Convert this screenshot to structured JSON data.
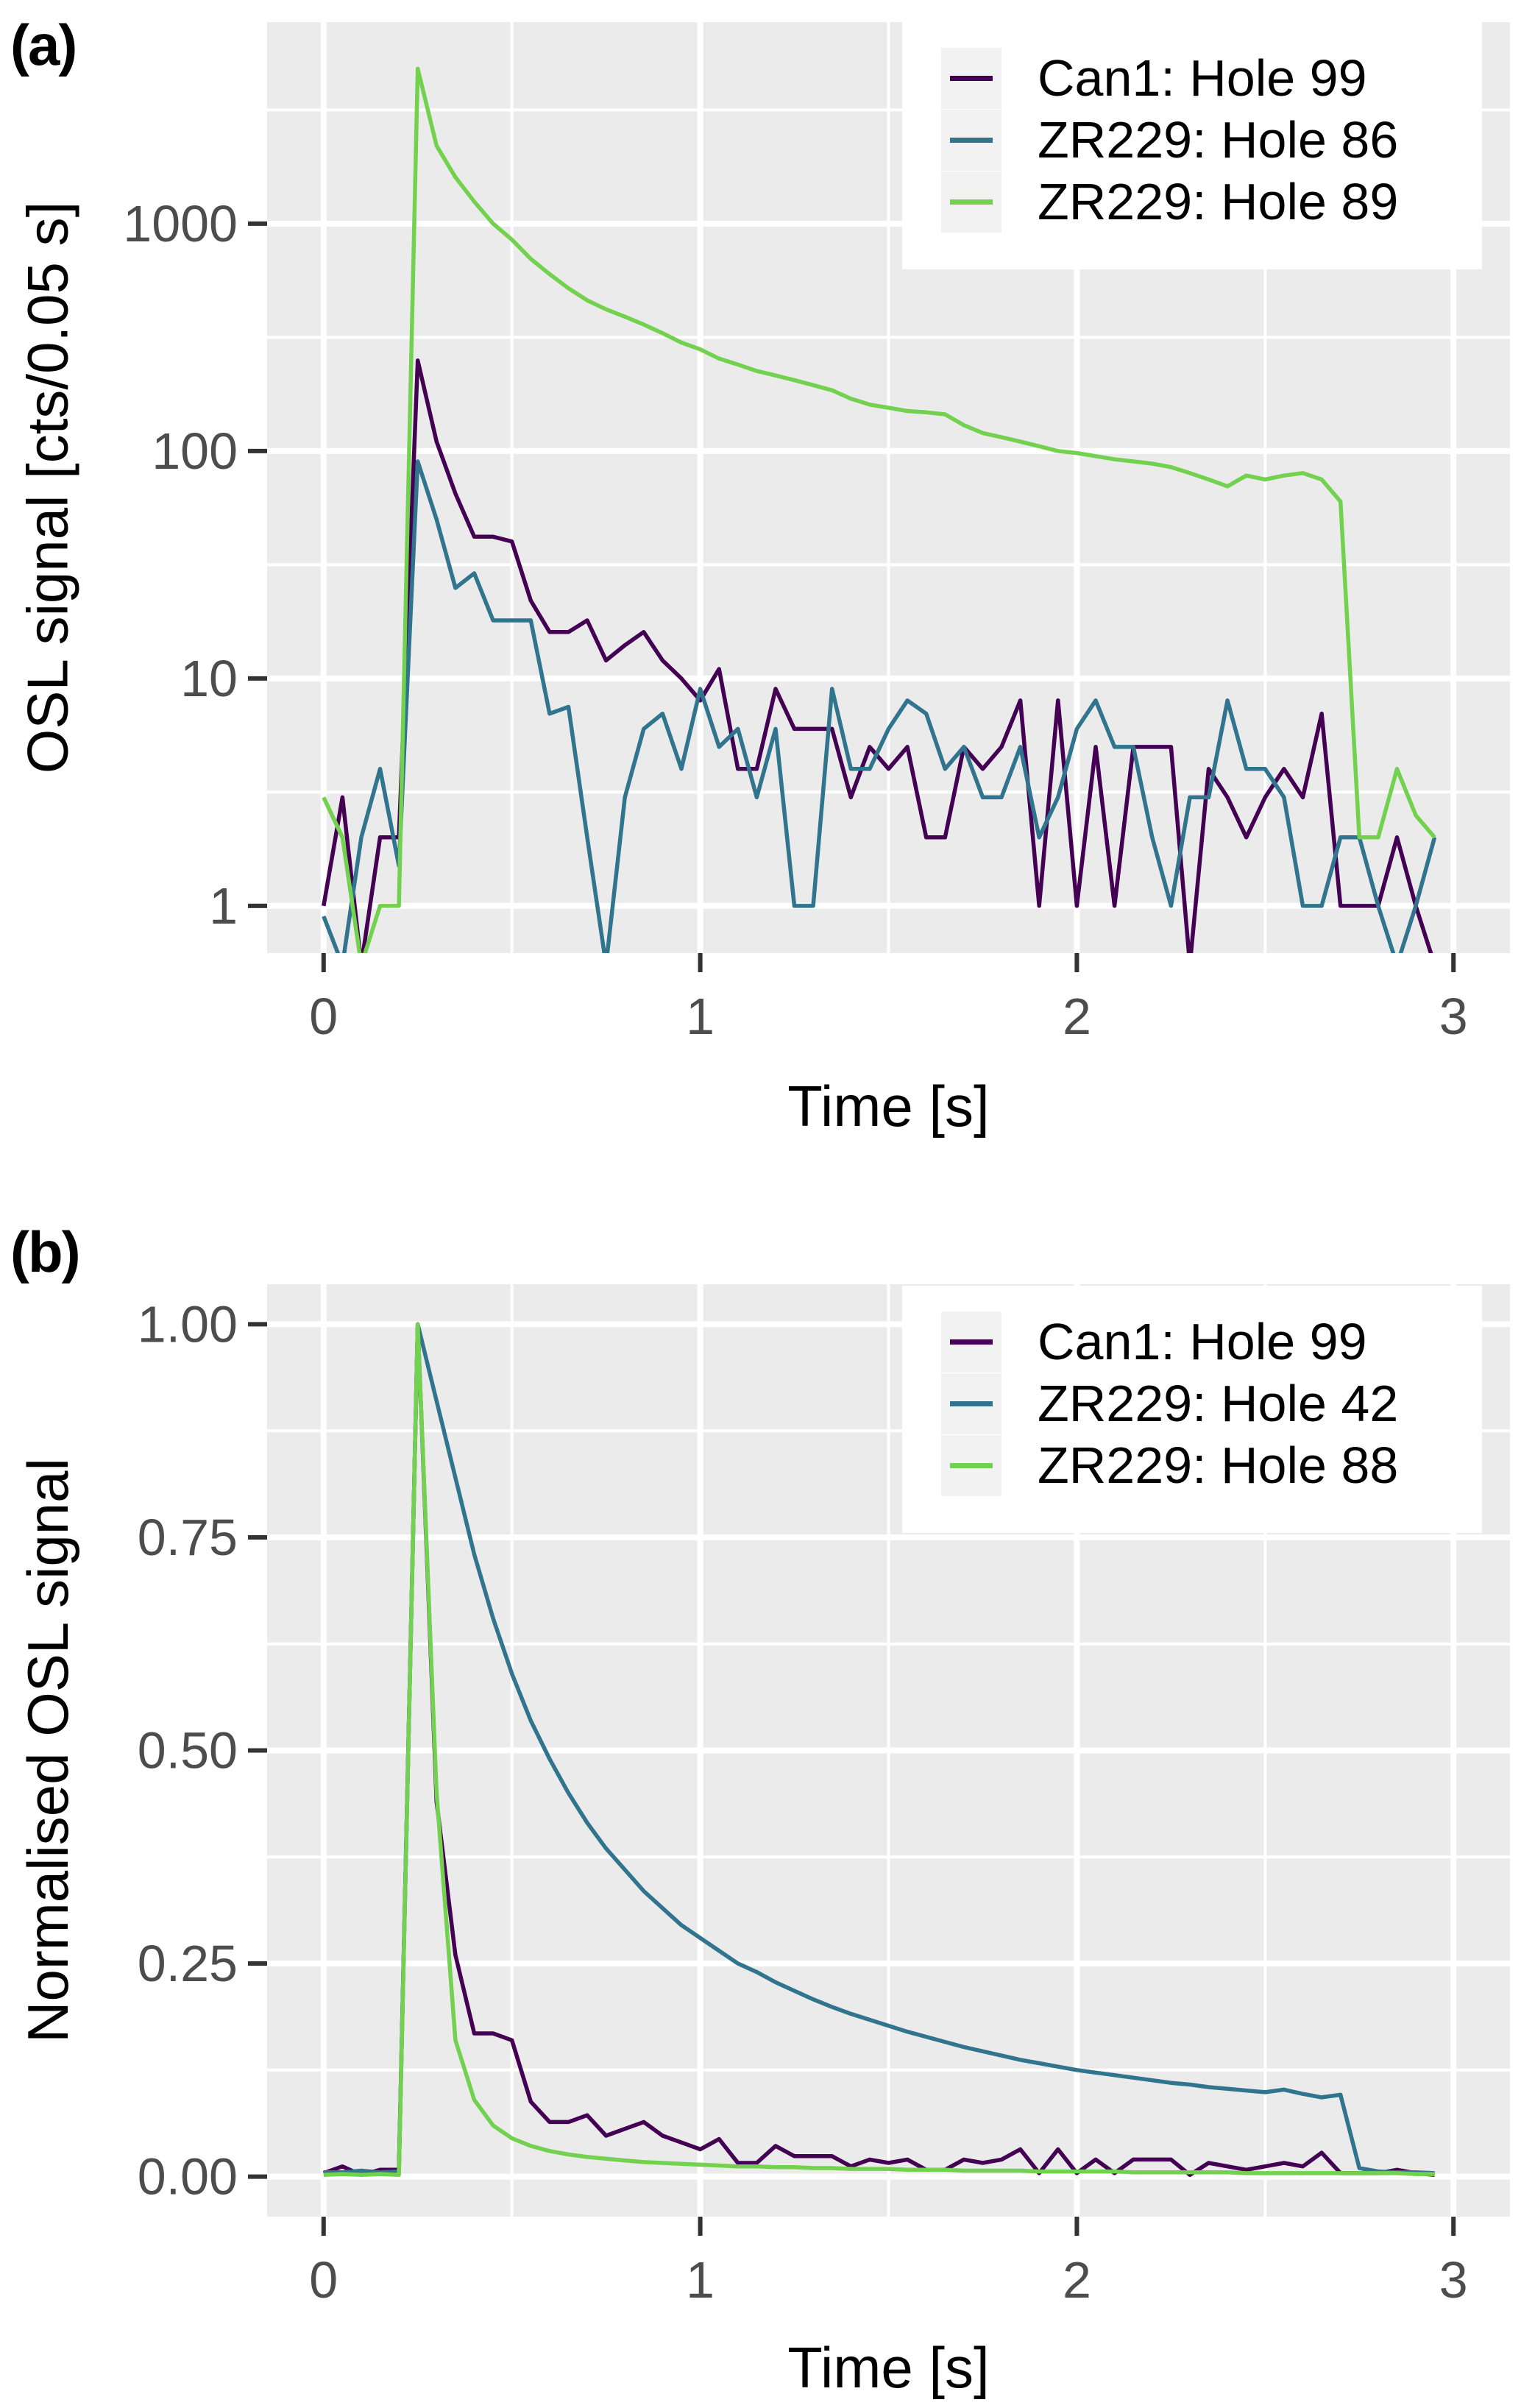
{
  "page": {
    "background": "#FFFFFF"
  },
  "panels": [
    {
      "tag": "(a)",
      "xlabel": "Time [s]",
      "ylabel": "OSL signal [cts/0.05 s]"
    },
    {
      "tag": "(b)",
      "xlabel": "Time [s]",
      "ylabel": "Normalised OSL signal"
    }
  ],
  "colors": {
    "purple": "#440154",
    "teal": "#31748E",
    "green": "#72D14E",
    "panel_bg": "#EBEBEB",
    "grid": "#FFFFFF",
    "tick_text": "#4D4D4D",
    "tick_mark": "#333333",
    "legend_bg": "#FFFFFF",
    "legend_key_bg": "#F2F2F2",
    "text": "#000000"
  },
  "chart_data": [
    {
      "type": "line",
      "panel": "a",
      "title": "",
      "xlabel": "Time [s]",
      "ylabel": "OSL signal [cts/0.05 s]",
      "x_scale": "linear",
      "y_scale": "log",
      "xlim": [
        -0.15,
        3.15
      ],
      "ylim": [
        0.62,
        7700
      ],
      "x_ticks": [
        0,
        1,
        2,
        3
      ],
      "x_tick_labels": [
        "0",
        "1",
        "2",
        "3"
      ],
      "y_ticks": [
        1,
        10,
        100,
        1000
      ],
      "y_tick_labels": [
        "1",
        "10",
        "100",
        "1000"
      ],
      "x_minor": [
        0.5,
        1.5,
        2.5
      ],
      "y_minor": [
        3.162,
        31.62,
        316.2,
        3162
      ],
      "grid": true,
      "legend_position": "top-right",
      "x": [
        0,
        0.05,
        0.1,
        0.15,
        0.2,
        0.25,
        0.3,
        0.35,
        0.4,
        0.45,
        0.5,
        0.55,
        0.6,
        0.65,
        0.7,
        0.75,
        0.8,
        0.85,
        0.9,
        0.95,
        1,
        1.05,
        1.1,
        1.15,
        1.2,
        1.25,
        1.3,
        1.35,
        1.4,
        1.45,
        1.5,
        1.55,
        1.6,
        1.65,
        1.7,
        1.75,
        1.8,
        1.85,
        1.9,
        1.95,
        2,
        2.05,
        2.1,
        2.15,
        2.2,
        2.25,
        2.3,
        2.35,
        2.4,
        2.45,
        2.5,
        2.55,
        2.6,
        2.65,
        2.7,
        2.75,
        2.8,
        2.85,
        2.9,
        2.95
      ],
      "series": [
        {
          "name": "Can1: Hole 99",
          "color_key": "purple",
          "values": [
            1,
            3,
            0.55,
            2,
            2,
            250,
            110,
            65,
            42,
            42,
            40,
            22,
            16,
            16,
            18,
            12,
            14,
            16,
            12,
            10,
            8,
            11,
            4,
            4,
            9,
            6,
            6,
            6,
            3,
            5,
            4,
            5,
            2,
            2,
            5,
            4,
            5,
            8,
            1,
            8,
            1,
            5,
            1,
            5,
            5,
            5,
            0.55,
            4,
            3,
            2,
            3,
            4,
            3,
            7,
            1,
            1,
            1,
            2,
            1,
            0.55
          ]
        },
        {
          "name": "ZR229: Hole 86",
          "color_key": "teal",
          "values": [
            0.9,
            0.55,
            2,
            4,
            1.5,
            90,
            50,
            25,
            29,
            18,
            18,
            18,
            7,
            7.5,
            2,
            0.55,
            3,
            6,
            7,
            4,
            9,
            5,
            6,
            3,
            6,
            1,
            1,
            9,
            4,
            4,
            6,
            8,
            7,
            4,
            5,
            3,
            3,
            5,
            2,
            3,
            6,
            8,
            5,
            5,
            2,
            1,
            3,
            3,
            8,
            4,
            4,
            3,
            1,
            1,
            2,
            2,
            1,
            0.55,
            1,
            2
          ]
        },
        {
          "name": "ZR229: Hole 89",
          "color_key": "green",
          "values": [
            3,
            2,
            0.55,
            1,
            1,
            4800,
            2200,
            1600,
            1250,
            1000,
            850,
            700,
            600,
            520,
            460,
            420,
            390,
            360,
            330,
            300,
            280,
            255,
            240,
            225,
            215,
            205,
            195,
            185,
            170,
            160,
            155,
            150,
            148,
            145,
            130,
            120,
            115,
            110,
            105,
            100,
            98,
            95,
            92,
            90,
            88,
            85,
            80,
            75,
            70,
            78,
            75,
            78,
            80,
            75,
            60,
            2,
            2,
            4,
            2.5,
            2
          ]
        }
      ]
    },
    {
      "type": "line",
      "panel": "b",
      "title": "",
      "xlabel": "Time [s]",
      "ylabel": "Normalised OSL signal",
      "x_scale": "linear",
      "y_scale": "linear",
      "xlim": [
        -0.15,
        3.15
      ],
      "ylim": [
        -0.047,
        1.047
      ],
      "x_ticks": [
        0,
        1,
        2,
        3
      ],
      "x_tick_labels": [
        "0",
        "1",
        "2",
        "3"
      ],
      "y_ticks": [
        0,
        0.25,
        0.5,
        0.75,
        1
      ],
      "y_tick_labels": [
        "0.00",
        "0.25",
        "0.50",
        "0.75",
        "1.00"
      ],
      "x_minor": [
        0.5,
        1.5,
        2.5
      ],
      "y_minor": [
        0.125,
        0.375,
        0.625,
        0.875
      ],
      "grid": true,
      "legend_position": "top-right",
      "x": [
        0,
        0.05,
        0.1,
        0.15,
        0.2,
        0.25,
        0.3,
        0.35,
        0.4,
        0.45,
        0.5,
        0.55,
        0.6,
        0.65,
        0.7,
        0.75,
        0.8,
        0.85,
        0.9,
        0.95,
        1,
        1.05,
        1.1,
        1.15,
        1.2,
        1.25,
        1.3,
        1.35,
        1.4,
        1.45,
        1.5,
        1.55,
        1.6,
        1.65,
        1.7,
        1.75,
        1.8,
        1.85,
        1.9,
        1.95,
        2,
        2.05,
        2.1,
        2.15,
        2.2,
        2.25,
        2.3,
        2.35,
        2.4,
        2.45,
        2.5,
        2.55,
        2.6,
        2.65,
        2.7,
        2.75,
        2.8,
        2.85,
        2.9,
        2.95
      ],
      "series": [
        {
          "name": "Can1: Hole 99",
          "color_key": "purple",
          "values": [
            0.004,
            0.012,
            0.002,
            0.008,
            0.008,
            1,
            0.44,
            0.26,
            0.168,
            0.168,
            0.16,
            0.088,
            0.064,
            0.064,
            0.072,
            0.048,
            0.056,
            0.064,
            0.048,
            0.04,
            0.032,
            0.044,
            0.016,
            0.016,
            0.036,
            0.024,
            0.024,
            0.024,
            0.012,
            0.02,
            0.016,
            0.02,
            0.008,
            0.008,
            0.02,
            0.016,
            0.02,
            0.032,
            0.004,
            0.032,
            0.004,
            0.02,
            0.004,
            0.02,
            0.02,
            0.02,
            0.002,
            0.016,
            0.012,
            0.008,
            0.012,
            0.016,
            0.012,
            0.028,
            0.004,
            0.004,
            0.004,
            0.008,
            0.004,
            0.002
          ]
        },
        {
          "name": "ZR229: Hole 42",
          "color_key": "teal",
          "values": [
            0.005,
            0.005,
            0.007,
            0.005,
            0.006,
            1,
            0.91,
            0.82,
            0.73,
            0.655,
            0.59,
            0.535,
            0.49,
            0.45,
            0.415,
            0.385,
            0.36,
            0.335,
            0.315,
            0.295,
            0.28,
            0.265,
            0.25,
            0.24,
            0.228,
            0.218,
            0.208,
            0.199,
            0.191,
            0.184,
            0.177,
            0.17,
            0.164,
            0.158,
            0.152,
            0.147,
            0.142,
            0.137,
            0.133,
            0.129,
            0.125,
            0.122,
            0.119,
            0.116,
            0.113,
            0.11,
            0.108,
            0.105,
            0.103,
            0.101,
            0.099,
            0.102,
            0.097,
            0.093,
            0.096,
            0.01,
            0.006,
            0.005,
            0.005,
            0.004
          ]
        },
        {
          "name": "ZR229: Hole 88",
          "color_key": "green",
          "values": [
            0.002,
            0.003,
            0.002,
            0.003,
            0.002,
            1,
            0.45,
            0.16,
            0.09,
            0.06,
            0.045,
            0.036,
            0.03,
            0.026,
            0.023,
            0.021,
            0.019,
            0.017,
            0.016,
            0.015,
            0.014,
            0.013,
            0.012,
            0.012,
            0.011,
            0.011,
            0.01,
            0.01,
            0.009,
            0.009,
            0.009,
            0.008,
            0.008,
            0.008,
            0.007,
            0.007,
            0.007,
            0.007,
            0.006,
            0.006,
            0.006,
            0.006,
            0.006,
            0.005,
            0.005,
            0.005,
            0.005,
            0.005,
            0.005,
            0.004,
            0.004,
            0.004,
            0.004,
            0.004,
            0.004,
            0.004,
            0.004,
            0.004,
            0.003,
            0.003
          ]
        }
      ]
    }
  ]
}
